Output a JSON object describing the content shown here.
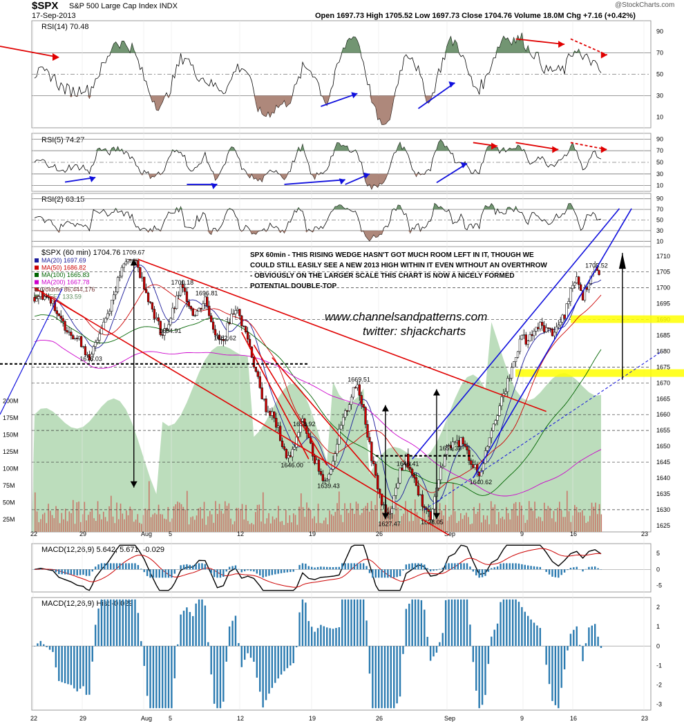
{
  "header": {
    "ticker": "$SPX",
    "name": "S&P 500 Large Cap Index INDX",
    "date": "17-Sep-2013",
    "quote": "Open 1697.73  High 1705.52  Low 1697.73  Close 1704.76  Volume 18.0M  Chg +7.16 (+0.42%)",
    "trend_icon": "up-arrow-icon",
    "watermark": "@StockCharts.com"
  },
  "colors": {
    "up_candle": "#ffffff",
    "down_candle": "#cc0000",
    "rsi_over": "#4f7a4f",
    "rsi_under": "#9a6a5a",
    "volume_bar": "#c8776a",
    "sxeft_area": "#9fcf9f",
    "macd_line": "#000000",
    "signal_line": "#cc0000",
    "hist_bar": "#2a7ab0",
    "trend_red": "#e00000",
    "trend_blue": "#1010dd",
    "highlight": "#ffff00"
  },
  "chart_data": [
    {
      "type": "line",
      "title": "RSI(14) 70.48",
      "ylim": [
        0,
        100
      ],
      "y_ticks": [
        10,
        30,
        50,
        70,
        90
      ],
      "levels": [
        30,
        50,
        70
      ]
    },
    {
      "type": "line",
      "title": "RSI(5) 74.27",
      "ylim": [
        0,
        100
      ],
      "y_ticks": [
        10,
        30,
        50,
        70,
        90
      ],
      "levels": [
        10,
        30,
        50,
        70,
        90
      ]
    },
    {
      "type": "line",
      "title": "RSI(2) 63.15",
      "ylim": [
        0,
        100
      ],
      "y_ticks": [
        10,
        30,
        50,
        70,
        90
      ],
      "levels": [
        10,
        30,
        50,
        70,
        90
      ]
    },
    {
      "type": "candlestick",
      "title": "$SPX (60 min) 1704.76",
      "legend": [
        {
          "name": "MA(20) 1697.69",
          "color": "#1a1a9a"
        },
        {
          "name": "MA(50) 1686.82",
          "color": "#cc0000"
        },
        {
          "name": "MA(100) 1665.83",
          "color": "#006400"
        },
        {
          "name": "MA(200) 1667.78",
          "color": "#cc00cc"
        },
        {
          "name": "Volume 86,444,176",
          "color": "#7a3a3a"
        },
        {
          "name": "$XEFT 133.59",
          "color": "#5a8a5a"
        }
      ],
      "ylim": [
        1623,
        1713
      ],
      "y_ticks": [
        1625,
        1630,
        1635,
        1640,
        1645,
        1650,
        1655,
        1660,
        1665,
        1670,
        1675,
        1680,
        1685,
        1690,
        1695,
        1700,
        1705,
        1710
      ],
      "volume_ticks": [
        "25M",
        "50M",
        "75M",
        "100M",
        "125M",
        "150M",
        "175M",
        "200M"
      ],
      "x_ticks": [
        "22",
        "29",
        "Aug",
        "5",
        "12",
        "19",
        "26",
        "Sep",
        "9",
        "16",
        "23"
      ],
      "price_path": [
        [
          0,
          1697
        ],
        [
          1,
          1698
        ],
        [
          2,
          1697
        ],
        [
          3,
          1696
        ],
        [
          4,
          1690
        ],
        [
          5,
          1688
        ],
        [
          6,
          1686
        ],
        [
          7,
          1684
        ],
        [
          8,
          1682
        ],
        [
          9,
          1676
        ],
        [
          10,
          1683
        ],
        [
          11,
          1688
        ],
        [
          12,
          1692
        ],
        [
          13,
          1698
        ],
        [
          14,
          1704
        ],
        [
          15,
          1708
        ],
        [
          16,
          1709.67
        ],
        [
          17,
          1706
        ],
        [
          18,
          1701
        ],
        [
          19,
          1695
        ],
        [
          20,
          1690
        ],
        [
          21,
          1685
        ],
        [
          22,
          1689
        ],
        [
          23,
          1694
        ],
        [
          24,
          1700.18
        ],
        [
          25,
          1697
        ],
        [
          26,
          1692
        ],
        [
          27,
          1693
        ],
        [
          28,
          1696.81
        ],
        [
          29,
          1690
        ],
        [
          30,
          1684
        ],
        [
          31,
          1682.62
        ],
        [
          32,
          1690
        ],
        [
          33,
          1694
        ],
        [
          34,
          1689
        ],
        [
          35,
          1684
        ],
        [
          36,
          1676
        ],
        [
          37,
          1668
        ],
        [
          38,
          1662
        ],
        [
          39,
          1660
        ],
        [
          40,
          1655
        ],
        [
          41,
          1648
        ],
        [
          42,
          1646
        ],
        [
          43,
          1652
        ],
        [
          44,
          1658.92
        ],
        [
          45,
          1652
        ],
        [
          46,
          1646
        ],
        [
          47,
          1641
        ],
        [
          48,
          1639.43
        ],
        [
          49,
          1646
        ],
        [
          50,
          1654
        ],
        [
          51,
          1660
        ],
        [
          52,
          1666
        ],
        [
          53,
          1669.51
        ],
        [
          54,
          1662
        ],
        [
          55,
          1650
        ],
        [
          56,
          1640
        ],
        [
          57,
          1632
        ],
        [
          58,
          1627.47
        ],
        [
          59,
          1634
        ],
        [
          60,
          1642
        ],
        [
          61,
          1646.41
        ],
        [
          62,
          1640
        ],
        [
          63,
          1636
        ],
        [
          64,
          1630
        ],
        [
          65,
          1628.05
        ],
        [
          66,
          1637
        ],
        [
          67,
          1645
        ],
        [
          68,
          1651.35
        ],
        [
          69,
          1650
        ],
        [
          70,
          1652
        ],
        [
          71,
          1648
        ],
        [
          72,
          1644
        ],
        [
          73,
          1640.62
        ],
        [
          74,
          1648
        ],
        [
          75,
          1656
        ],
        [
          76,
          1661
        ],
        [
          77,
          1666
        ],
        [
          78,
          1672
        ],
        [
          79,
          1679
        ],
        [
          80,
          1685
        ],
        [
          81,
          1683
        ],
        [
          82,
          1686
        ],
        [
          83,
          1688
        ],
        [
          84,
          1687
        ],
        [
          85,
          1686
        ],
        [
          86,
          1688
        ],
        [
          87,
          1691
        ],
        [
          88,
          1700
        ],
        [
          89,
          1704
        ],
        [
          90,
          1697
        ],
        [
          91,
          1702
        ],
        [
          92,
          1705.52
        ],
        [
          93,
          1704.76
        ]
      ],
      "price_labels": [
        {
          "label": "1709.67",
          "x": 16,
          "y": 1709.67
        },
        {
          "label": "1700.18",
          "x": 24,
          "y": 1700.18
        },
        {
          "label": "1696.81",
          "x": 28,
          "y": 1696.81
        },
        {
          "label": "1684.91",
          "x": 22,
          "y": 1684.91
        },
        {
          "label": "1682.62",
          "x": 31,
          "y": 1682.62
        },
        {
          "label": "1676.03",
          "x": 9,
          "y": 1676.03
        },
        {
          "label": "1669.51",
          "x": 53,
          "y": 1669.51
        },
        {
          "label": "1658.92",
          "x": 44,
          "y": 1658.92
        },
        {
          "label": "1651.35",
          "x": 68,
          "y": 1651.35
        },
        {
          "label": "1646.41",
          "x": 61,
          "y": 1646.41
        },
        {
          "label": "1646.00",
          "x": 42,
          "y": 1646.0
        },
        {
          "label": "1640.62",
          "x": 73,
          "y": 1640.62
        },
        {
          "label": "1639.43",
          "x": 48,
          "y": 1639.43
        },
        {
          "label": "1628.05",
          "x": 65,
          "y": 1628.05
        },
        {
          "label": "1627.47",
          "x": 58,
          "y": 1627.47
        },
        {
          "label": "1705.52",
          "x": 92,
          "y": 1705.52
        }
      ],
      "annotation": "SPX 60min - THIS RISING WEDGE HASN'T GOT MUCH ROOM LEFT IN IT, THOUGH WE COULD STILL EASILY SEE A NEW 2013 HIGH WITHIN IT EVEN WITHOUT AN OVERTHROW - OBVIOUSLY ON THE LARGER SCALE THIS CHART IS NOW A NICELY FORMED POTENTIAL DOUBLE-TOP",
      "website": "www.channelsandpatterns.com",
      "twitter": "twitter: shjackcharts",
      "highlight_levels": [
        1690,
        1673
      ]
    },
    {
      "type": "line",
      "title": "MACD(12,26,9) 5.642, 5.671, -0.029",
      "ylim": [
        -7,
        8
      ],
      "y_ticks": [
        -5,
        0,
        5
      ]
    },
    {
      "type": "bar",
      "title": "MACD(12,26,9) Hist -0.029",
      "ylim": [
        -3.3,
        2.5
      ],
      "y_ticks": [
        -3,
        -2,
        -1,
        0,
        1,
        2
      ],
      "x_ticks": [
        "22",
        "29",
        "Aug",
        "5",
        "12",
        "19",
        "26",
        "Sep",
        "9",
        "16",
        "23"
      ]
    }
  ]
}
